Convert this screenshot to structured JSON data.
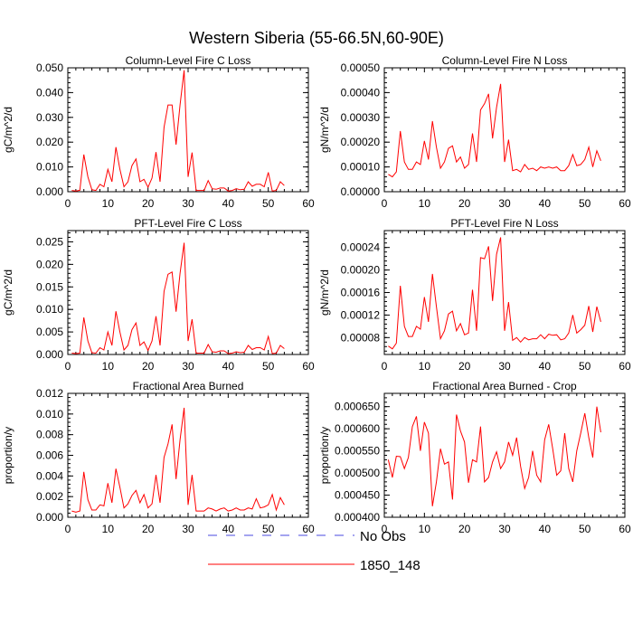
{
  "figure": {
    "title": "Western Siberia (55-66.5N,60-90E)"
  },
  "legend": {
    "entries": [
      {
        "label": "No Obs",
        "color": "#4a4ae0",
        "style": "dashed"
      },
      {
        "label": "1850_148",
        "color": "#ff0000",
        "style": "solid"
      }
    ]
  },
  "chart_data": [
    {
      "type": "line",
      "title": "Column-Level Fire C Loss",
      "ylabel": "gC/m^2/d",
      "xlim": [
        0,
        60
      ],
      "ylim": [
        0,
        0.05
      ],
      "xticks": [
        0,
        10,
        20,
        30,
        40,
        50,
        60
      ],
      "yticks": [
        "0.000",
        "0.010",
        "0.020",
        "0.030",
        "0.040",
        "0.050"
      ],
      "series": [
        {
          "name": "1850_148",
          "color": "#ff0000",
          "x": [
            1,
            2,
            3,
            4,
            5,
            6,
            7,
            8,
            9,
            10,
            11,
            12,
            13,
            14,
            15,
            16,
            17,
            18,
            19,
            20,
            21,
            22,
            23,
            24,
            25,
            26,
            27,
            28,
            29,
            30,
            31,
            32,
            33,
            34,
            35,
            36,
            37,
            38,
            39,
            40,
            41,
            42,
            43,
            44,
            45,
            46,
            47,
            48,
            49,
            50,
            51,
            52,
            53,
            54
          ],
          "y": [
            0.0005,
            0.0003,
            0.0006,
            0.015,
            0.006,
            0.0008,
            0.0005,
            0.003,
            0.002,
            0.009,
            0.004,
            0.018,
            0.009,
            0.002,
            0.004,
            0.0105,
            0.0132,
            0.004,
            0.005,
            0.0018,
            0.0055,
            0.016,
            0.004,
            0.026,
            0.035,
            0.035,
            0.019,
            0.035,
            0.049,
            0.006,
            0.0158,
            0.0005,
            0.0005,
            0.0005,
            0.0045,
            0.0012,
            0.001,
            0.0015,
            0.0015,
            0.0003,
            0.0005,
            0.0012,
            0.0008,
            0.001,
            0.004,
            0.0022,
            0.003,
            0.003,
            0.002,
            0.0078,
            0.0003,
            0.0005,
            0.004,
            0.0025
          ]
        }
      ]
    },
    {
      "type": "line",
      "title": "Column-Level Fire N Loss",
      "ylabel": "gN/m^2/d",
      "xlim": [
        0,
        60
      ],
      "ylim": [
        0,
        0.0005
      ],
      "xticks": [
        0,
        10,
        20,
        30,
        40,
        50,
        60
      ],
      "yticks": [
        "0.00000",
        "0.00010",
        "0.00020",
        "0.00030",
        "0.00040",
        "0.00050"
      ],
      "series": [
        {
          "name": "1850_148",
          "color": "#ff0000",
          "x": [
            1,
            2,
            3,
            4,
            5,
            6,
            7,
            8,
            9,
            10,
            11,
            12,
            13,
            14,
            15,
            16,
            17,
            18,
            19,
            20,
            21,
            22,
            23,
            24,
            25,
            26,
            27,
            28,
            29,
            30,
            31,
            32,
            33,
            34,
            35,
            36,
            37,
            38,
            39,
            40,
            41,
            42,
            43,
            44,
            45,
            46,
            47,
            48,
            49,
            50,
            51,
            52,
            53,
            54
          ],
          "y": [
            7e-05,
            6e-05,
            8e-05,
            0.000245,
            0.00012,
            9e-05,
            9e-05,
            0.00012,
            0.00011,
            0.000205,
            0.00013,
            0.000285,
            0.00018,
            9.5e-05,
            0.00012,
            0.000175,
            0.000185,
            0.00012,
            0.00014,
            9.5e-05,
            0.00011,
            0.000235,
            0.00012,
            0.00033,
            0.000355,
            0.000395,
            0.000215,
            0.00034,
            0.000435,
            0.00012,
            0.00021,
            8.5e-05,
            9e-05,
            8e-05,
            0.00011,
            9e-05,
            9.5e-05,
            8.5e-05,
            0.0001,
            9.5e-05,
            0.0001,
            9.5e-05,
            0.0001,
            8.5e-05,
            8.5e-05,
            0.000105,
            0.00015,
            0.000105,
            0.00011,
            0.00013,
            0.00018,
            0.0001,
            0.000165,
            0.000125
          ]
        }
      ]
    },
    {
      "type": "line",
      "title": "PFT-Level Fire C Loss",
      "ylabel": "gC/m^2/d",
      "xlim": [
        0,
        60
      ],
      "ylim": [
        0,
        0.0275
      ],
      "xticks": [
        0,
        10,
        20,
        30,
        40,
        50,
        60
      ],
      "yticks": [
        "0.000",
        "0.005",
        "0.010",
        "0.015",
        "0.020",
        "0.025"
      ],
      "series": [
        {
          "name": "1850_148",
          "color": "#ff0000",
          "x": [
            1,
            2,
            3,
            4,
            5,
            6,
            7,
            8,
            9,
            10,
            11,
            12,
            13,
            14,
            15,
            16,
            17,
            18,
            19,
            20,
            21,
            22,
            23,
            24,
            25,
            26,
            27,
            28,
            29,
            30,
            31,
            32,
            33,
            34,
            35,
            36,
            37,
            38,
            39,
            40,
            41,
            42,
            43,
            44,
            45,
            46,
            47,
            48,
            49,
            50,
            51,
            52,
            53,
            54
          ],
          "y": [
            0.0003,
            0.0002,
            0.0003,
            0.0082,
            0.003,
            0.0004,
            0.0003,
            0.0015,
            0.001,
            0.005,
            0.002,
            0.0096,
            0.005,
            0.001,
            0.002,
            0.0055,
            0.007,
            0.002,
            0.0028,
            0.0009,
            0.003,
            0.0085,
            0.002,
            0.014,
            0.0178,
            0.0183,
            0.0095,
            0.018,
            0.0248,
            0.003,
            0.0078,
            0.0003,
            0.0003,
            0.0003,
            0.0022,
            0.0006,
            0.0005,
            0.0008,
            0.0008,
            0.0002,
            0.0003,
            0.0006,
            0.0004,
            0.0005,
            0.002,
            0.0011,
            0.0015,
            0.0015,
            0.001,
            0.004,
            0.0002,
            0.0003,
            0.002,
            0.0013
          ]
        }
      ]
    },
    {
      "type": "line",
      "title": "PFT-Level Fire N Loss",
      "ylabel": "gN/m^2/d",
      "xlim": [
        0,
        60
      ],
      "ylim": [
        5e-05,
        0.00027
      ],
      "xticks": [
        0,
        10,
        20,
        30,
        40,
        50,
        60
      ],
      "yticks": [
        "0.00008",
        "0.00012",
        "0.00016",
        "0.00020",
        "0.00024"
      ],
      "series": [
        {
          "name": "1850_148",
          "color": "#ff0000",
          "x": [
            1,
            2,
            3,
            4,
            5,
            6,
            7,
            8,
            9,
            10,
            11,
            12,
            13,
            14,
            15,
            16,
            17,
            18,
            19,
            20,
            21,
            22,
            23,
            24,
            25,
            26,
            27,
            28,
            29,
            30,
            31,
            32,
            33,
            34,
            35,
            36,
            37,
            38,
            39,
            40,
            41,
            42,
            43,
            44,
            45,
            46,
            47,
            48,
            49,
            50,
            51,
            52,
            53,
            54
          ],
          "y": [
            6.5e-05,
            6e-05,
            7e-05,
            0.000172,
            0.0001,
            8.2e-05,
            8.2e-05,
            0.0001,
            9.5e-05,
            0.000152,
            0.000108,
            0.000193,
            0.000135,
            7.8e-05,
            9.2e-05,
            0.000122,
            0.000127,
            9.2e-05,
            0.000105,
            8.5e-05,
            8.8e-05,
            0.000165,
            9.2e-05,
            0.000222,
            0.00022,
            0.000242,
            0.000145,
            0.000228,
            0.000258,
            9.2e-05,
            0.000143,
            7.5e-05,
            8e-05,
            7.2e-05,
            8e-05,
            7.6e-05,
            7.8e-05,
            7.8e-05,
            8.5e-05,
            7.8e-05,
            8.6e-05,
            8.4e-05,
            8.5e-05,
            7.6e-05,
            7.8e-05,
            8.8e-05,
            0.00012,
            8.8e-05,
            9.4e-05,
            0.000102,
            0.000136,
            9e-05,
            0.000135,
            0.000108
          ]
        }
      ]
    },
    {
      "type": "line",
      "title": "Fractional Area Burned",
      "ylabel": "proportion/y",
      "xlim": [
        0,
        60
      ],
      "ylim": [
        0,
        0.012
      ],
      "xticks": [
        0,
        10,
        20,
        30,
        40,
        50,
        60
      ],
      "yticks": [
        "0.000",
        "0.002",
        "0.004",
        "0.006",
        "0.008",
        "0.010",
        "0.012"
      ],
      "series": [
        {
          "name": "1850_148",
          "color": "#ff0000",
          "x": [
            1,
            2,
            3,
            4,
            5,
            6,
            7,
            8,
            9,
            10,
            11,
            12,
            13,
            14,
            15,
            16,
            17,
            18,
            19,
            20,
            21,
            22,
            23,
            24,
            25,
            26,
            27,
            28,
            29,
            30,
            31,
            32,
            33,
            34,
            35,
            36,
            37,
            38,
            39,
            40,
            41,
            42,
            43,
            44,
            45,
            46,
            47,
            48,
            49,
            50,
            51,
            52,
            53,
            54
          ],
          "y": [
            0.0006,
            0.0005,
            0.0006,
            0.0044,
            0.0017,
            0.0007,
            0.0007,
            0.0012,
            0.0011,
            0.0033,
            0.0014,
            0.0047,
            0.0029,
            0.0009,
            0.0013,
            0.0021,
            0.0026,
            0.0014,
            0.0022,
            0.0009,
            0.0013,
            0.0041,
            0.0014,
            0.0058,
            0.0071,
            0.009,
            0.0037,
            0.0075,
            0.0106,
            0.0012,
            0.0041,
            0.0006,
            0.0006,
            0.0006,
            0.0009,
            0.0008,
            0.0006,
            0.0008,
            0.0009,
            0.0006,
            0.0007,
            0.0009,
            0.0007,
            0.0007,
            0.0009,
            0.0008,
            0.0018,
            0.0009,
            0.001,
            0.0012,
            0.0022,
            0.0007,
            0.0019,
            0.0012
          ]
        }
      ]
    },
    {
      "type": "line",
      "title": "Fractional Area Burned - Crop",
      "ylabel": "proportion/y",
      "xlim": [
        0,
        60
      ],
      "ylim": [
        0.0004,
        0.00068
      ],
      "xticks": [
        0,
        10,
        20,
        30,
        40,
        50,
        60
      ],
      "yticks": [
        "0.000400",
        "0.000450",
        "0.000500",
        "0.000550",
        "0.000600",
        "0.000650"
      ],
      "series": [
        {
          "name": "1850_148",
          "color": "#ff0000",
          "x": [
            1,
            2,
            3,
            4,
            5,
            6,
            7,
            8,
            9,
            10,
            11,
            12,
            13,
            14,
            15,
            16,
            17,
            18,
            19,
            20,
            21,
            22,
            23,
            24,
            25,
            26,
            27,
            28,
            29,
            30,
            31,
            32,
            33,
            34,
            35,
            36,
            37,
            38,
            39,
            40,
            41,
            42,
            43,
            44,
            45,
            46,
            47,
            48,
            49,
            50,
            51,
            52,
            53,
            54
          ],
          "y": [
            0.00053,
            0.00049,
            0.000538,
            0.000537,
            0.00051,
            0.000535,
            0.000605,
            0.000628,
            0.00055,
            0.000615,
            0.00059,
            0.000425,
            0.00048,
            0.000555,
            0.00052,
            0.000525,
            0.00044,
            0.000632,
            0.000595,
            0.00057,
            0.000478,
            0.00053,
            0.000525,
            0.000605,
            0.00048,
            0.00049,
            0.000525,
            0.000548,
            0.00051,
            0.000525,
            0.00057,
            0.00054,
            0.00058,
            0.000515,
            0.000465,
            0.00049,
            0.00055,
            0.000495,
            0.00048,
            0.000575,
            0.00061,
            0.000555,
            0.000495,
            0.000505,
            0.00059,
            0.00051,
            0.00048,
            0.00055,
            0.00059,
            0.000635,
            0.00058,
            0.000535,
            0.00065,
            0.000592
          ]
        }
      ]
    }
  ]
}
